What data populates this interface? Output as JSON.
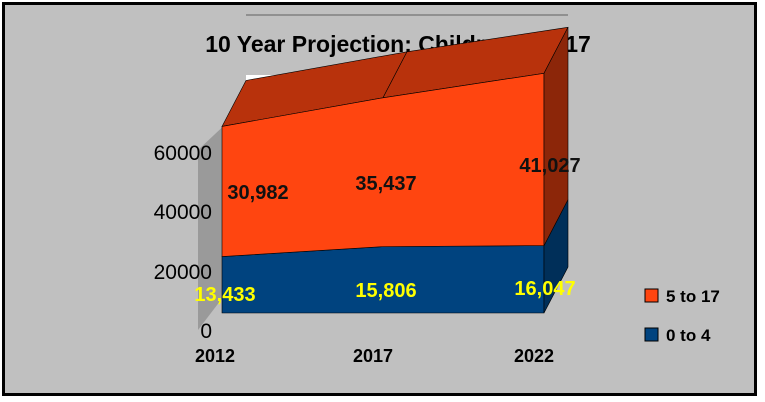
{
  "chart_data": {
    "type": "area",
    "title": "10 Year Projection: Children 0 to 17",
    "categories": [
      "2012",
      "2017",
      "2022"
    ],
    "y_ticks": [
      "0",
      "20000",
      "40000",
      "60000"
    ],
    "ylim": [
      0,
      60000
    ],
    "stacked": true,
    "three_d": true,
    "legend_position": "right",
    "series": [
      {
        "name": "0 to 4",
        "values": [
          13433,
          15806,
          16047
        ],
        "labels": [
          "13,433",
          "15,806",
          "16,047"
        ],
        "color": "#00437f"
      },
      {
        "name": "5 to 17",
        "values": [
          30982,
          35437,
          41027
        ],
        "labels": [
          "30,982",
          "35,437",
          "41,027"
        ],
        "color": "#ff4510"
      }
    ]
  },
  "colors": {
    "background": "#c0c0c0",
    "plot_back_wall": "#ffffff",
    "label_bottom": "#ffff00",
    "label_top": "#111111"
  }
}
